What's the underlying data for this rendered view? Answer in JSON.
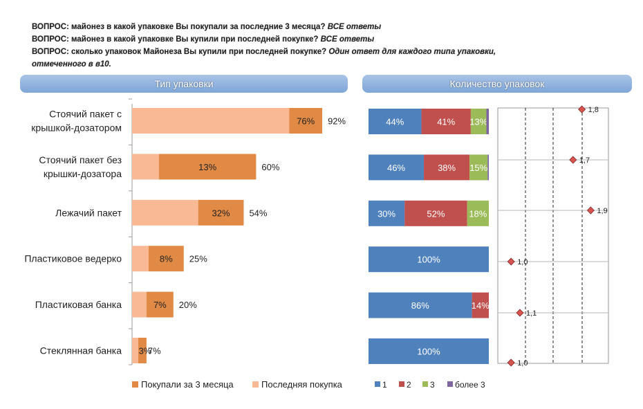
{
  "questions": [
    {
      "text": "ВОПРОС: майонез  в какой упаковке Вы покупали за последние 3 месяца?",
      "note": "ВСЕ ответы"
    },
    {
      "text": "ВОПРОС: майонез в какой упаковке Вы купили при последней покупке?",
      "note": "ВСЕ ответы"
    },
    {
      "text": "ВОПРОС: сколько упаковок Майонеза Вы купили при последней покупке?",
      "note": "Один ответ для каждого типа упаковки,"
    },
    {
      "text": "",
      "note": "отмеченного в в10."
    }
  ],
  "headers": {
    "left": "Тип упаковки",
    "right": "Количество упаковок"
  },
  "colors": {
    "bought_3m": "#e08a45",
    "last_purchase": "#f9b995",
    "q1": "#4f81bd",
    "q2": "#c0504d",
    "q3": "#9bbb59",
    "q_more3": "#8064a2",
    "diamond": "#d9534f"
  },
  "chart_data": [
    {
      "type": "bar",
      "orientation": "horizontal",
      "categories": [
        [
          "Стоячий пакет с",
          "крышкой-дозатором"
        ],
        [
          "Стоячий пакет без",
          "крышки-дозатора"
        ],
        [
          "Лежачий пакет"
        ],
        [
          "Пластиковое ведерко"
        ],
        [
          "Пластиковая банка"
        ],
        [
          "Стеклянная банка"
        ]
      ],
      "series": [
        {
          "name": "Покупали за 3 месяца",
          "values": [
            92,
            60,
            54,
            25,
            20,
            7
          ],
          "labels": [
            "92%",
            "60%",
            "54%",
            "25%",
            "20%",
            "7%"
          ]
        },
        {
          "name": "Последняя покупка",
          "values": [
            76,
            13,
            32,
            8,
            7,
            3
          ],
          "labels": [
            "76%",
            "13%",
            "32%",
            "8%",
            "7%",
            "3%"
          ]
        }
      ],
      "xlim": [
        0,
        100
      ],
      "legend": "bottom"
    },
    {
      "type": "bar",
      "orientation": "horizontal",
      "stacked": true,
      "categories": [
        "Стоячий пакет с крышкой-дозатором",
        "Стоячий пакет без крышки-дозатора",
        "Лежачий пакет",
        "Пластиковое ведерко",
        "Пластиковая банка",
        "Стеклянная банка"
      ],
      "series": [
        {
          "name": "1",
          "values": [
            44,
            46,
            30,
            100,
            86,
            100
          ]
        },
        {
          "name": "2",
          "values": [
            41,
            38,
            52,
            0,
            14,
            0
          ]
        },
        {
          "name": "3",
          "values": [
            13,
            15,
            18,
            0,
            0,
            0
          ]
        },
        {
          "name": "более 3",
          "values": [
            2,
            1,
            0,
            0,
            0,
            0
          ]
        }
      ],
      "labels": [
        [
          "44%",
          "41%",
          "13%",
          ""
        ],
        [
          "46%",
          "38%",
          "15%",
          ""
        ],
        [
          "30%",
          "52%",
          "18%",
          ""
        ],
        [
          "100%",
          "",
          "",
          ""
        ],
        [
          "86%",
          "14%",
          "",
          ""
        ],
        [
          "100%",
          "",
          "",
          ""
        ]
      ],
      "xlim": [
        0,
        100
      ],
      "legend": "bottom"
    },
    {
      "type": "scatter",
      "categories": [
        "Стоячий пакет с крышкой-дозатором",
        "Стоячий пакет без крышки-дозатора",
        "Лежачий пакет",
        "Пластиковое ведерко",
        "Пластиковая банка",
        "Стеклянная банка"
      ],
      "values": [
        1.8,
        1.7,
        1.9,
        1.0,
        1.1,
        1.0
      ],
      "labels": [
        "1,8",
        "1,7",
        "1,9",
        "1,0",
        "1,1",
        "1,0"
      ],
      "xlim": [
        0.85,
        2.1
      ],
      "grid": "horizontal and vertical dashed lines"
    }
  ]
}
